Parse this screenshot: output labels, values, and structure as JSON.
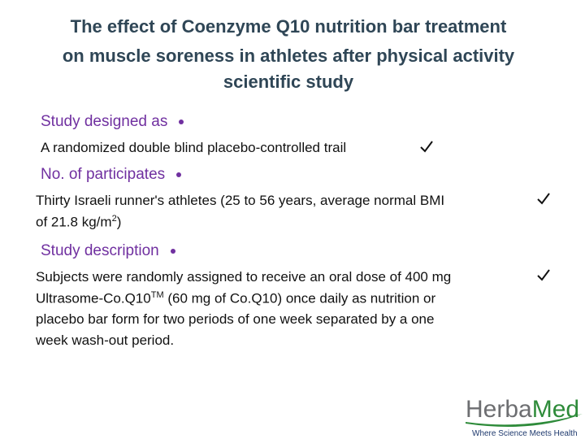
{
  "header": {
    "title_lines": [
      "The effect of Coenzyme Q10 nutrition bar treatment",
      "on muscle soreness in athletes after physical activity",
      "scientific study"
    ]
  },
  "sections": [
    {
      "heading": "Study designed as",
      "lines": [
        [
          {
            "text": "A randomized double blind placebo-controlled trail"
          }
        ]
      ]
    },
    {
      "heading": "No. of participates",
      "lines": [
        [
          {
            "text": "Thirty Israeli runner's athletes  (25 to 56 years, average normal BMI"
          }
        ],
        [
          {
            "text": "of 21.8 kg/m"
          },
          {
            "sup": "2"
          },
          {
            "text": ")"
          }
        ]
      ]
    },
    {
      "heading": "Study  description",
      "lines": [
        [
          {
            "text": "Subjects were randomly assigned to receive an oral dose of 400 mg"
          }
        ],
        [
          {
            "text": "Ultrasome-Co.Q10"
          },
          {
            "sup": "TM"
          },
          {
            "text": " (60 mg of Co.Q10) once daily as nutrition or"
          }
        ],
        [
          {
            "text": "placebo bar form for two periods of one week separated by a one"
          }
        ],
        [
          {
            "text": "week wash-out period."
          }
        ]
      ]
    }
  ],
  "logo": {
    "name_part1": "Herba",
    "name_part2": "Med",
    "tagline": "Where Science Meets Health"
  }
}
